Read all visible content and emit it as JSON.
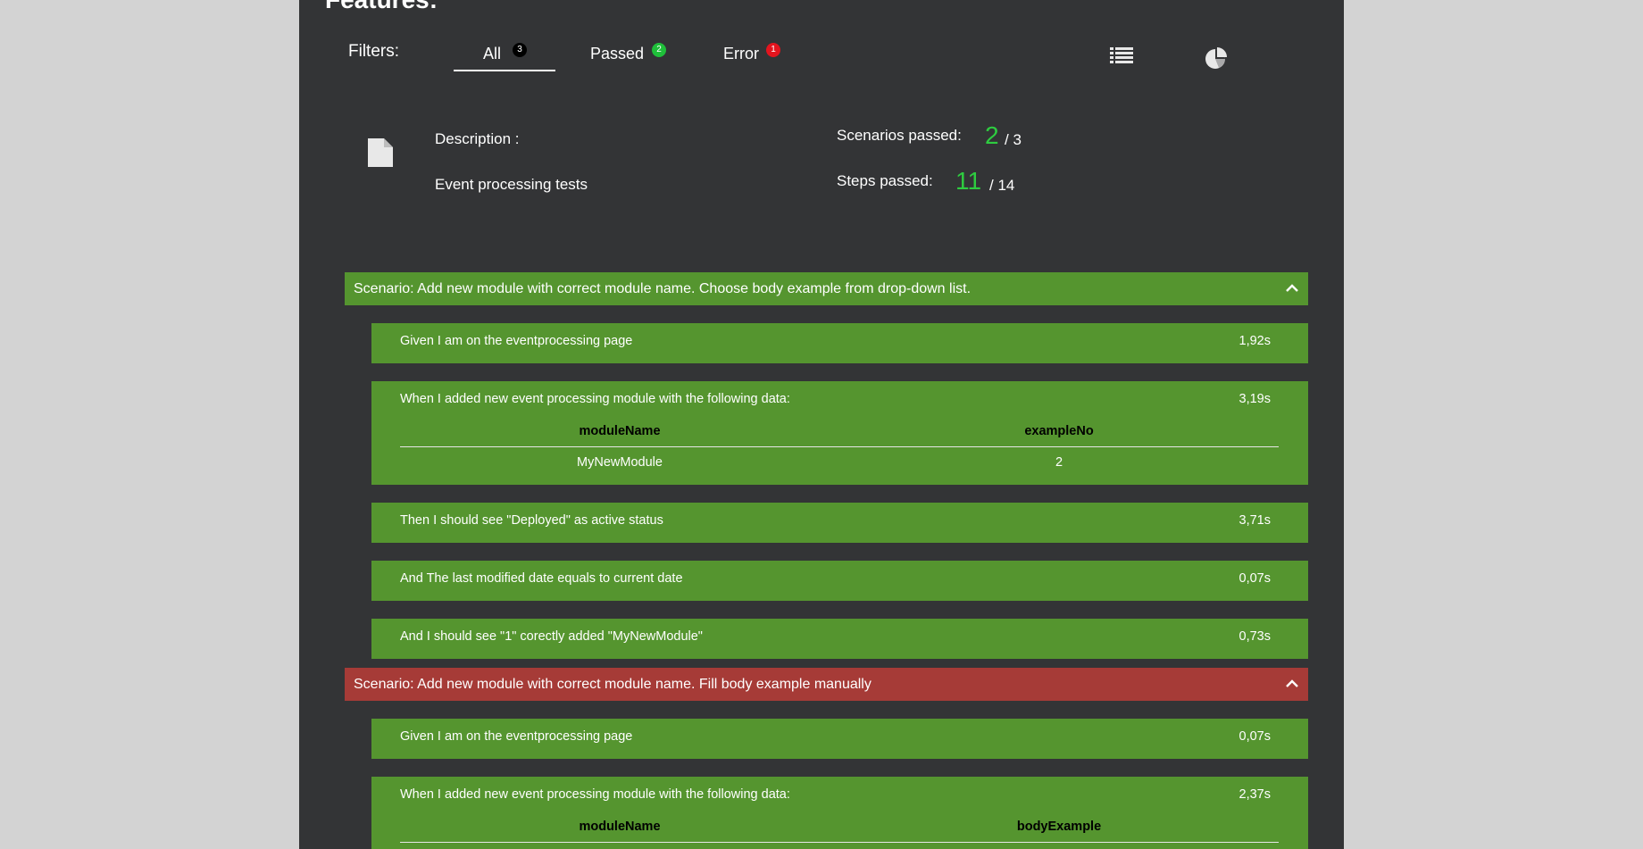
{
  "page": {
    "title": "Features:"
  },
  "filters": {
    "label": "Filters:",
    "tabs": [
      {
        "label": "All",
        "count": "3"
      },
      {
        "label": "Passed",
        "count": "2"
      },
      {
        "label": "Error",
        "count": "1"
      }
    ],
    "active_tab": "All",
    "view_icons": [
      "list-icon",
      "pie-chart-icon"
    ]
  },
  "feature": {
    "icon": "document-icon",
    "description_label": "Description :",
    "description": "Event processing tests",
    "scenarios_label": "Scenarios passed:",
    "scenarios_passed": "2",
    "scenarios_total": "/ 3",
    "steps_label": "Steps passed:",
    "steps_passed": "11",
    "steps_total": "/ 14"
  },
  "colors": {
    "passed": "#55952f",
    "failed": "#a63b37",
    "panel": "#333436",
    "accent_green": "#2ecc40"
  },
  "scenarios": [
    {
      "title": "Scenario: Add new module with correct module name. Choose body example from drop-down list.",
      "status": "passed",
      "steps": [
        {
          "text": "Given I am on the eventprocessing page",
          "duration": "1,92s"
        },
        {
          "text": "When I added new event processing module with the following data:",
          "duration": "3,19s",
          "table": {
            "headers": [
              "moduleName",
              "exampleNo"
            ],
            "rows": [
              [
                "MyNewModule",
                "2"
              ]
            ]
          }
        },
        {
          "text": "Then I should see \"Deployed\" as active status",
          "duration": "3,71s"
        },
        {
          "text": "And The last modified date equals to current date",
          "duration": "0,07s"
        },
        {
          "text": "And I should see \"1\" corectly added \"MyNewModule\"",
          "duration": "0,73s"
        }
      ]
    },
    {
      "title": "Scenario: Add new module with correct module name. Fill body example manually",
      "status": "failed",
      "steps": [
        {
          "text": "Given I am on the eventprocessing page",
          "duration": "0,07s"
        },
        {
          "text": "When I added new event processing module with the following data:",
          "duration": "2,37s",
          "table": {
            "headers": [
              "moduleName",
              "bodyExample"
            ],
            "rows": []
          }
        }
      ]
    }
  ]
}
